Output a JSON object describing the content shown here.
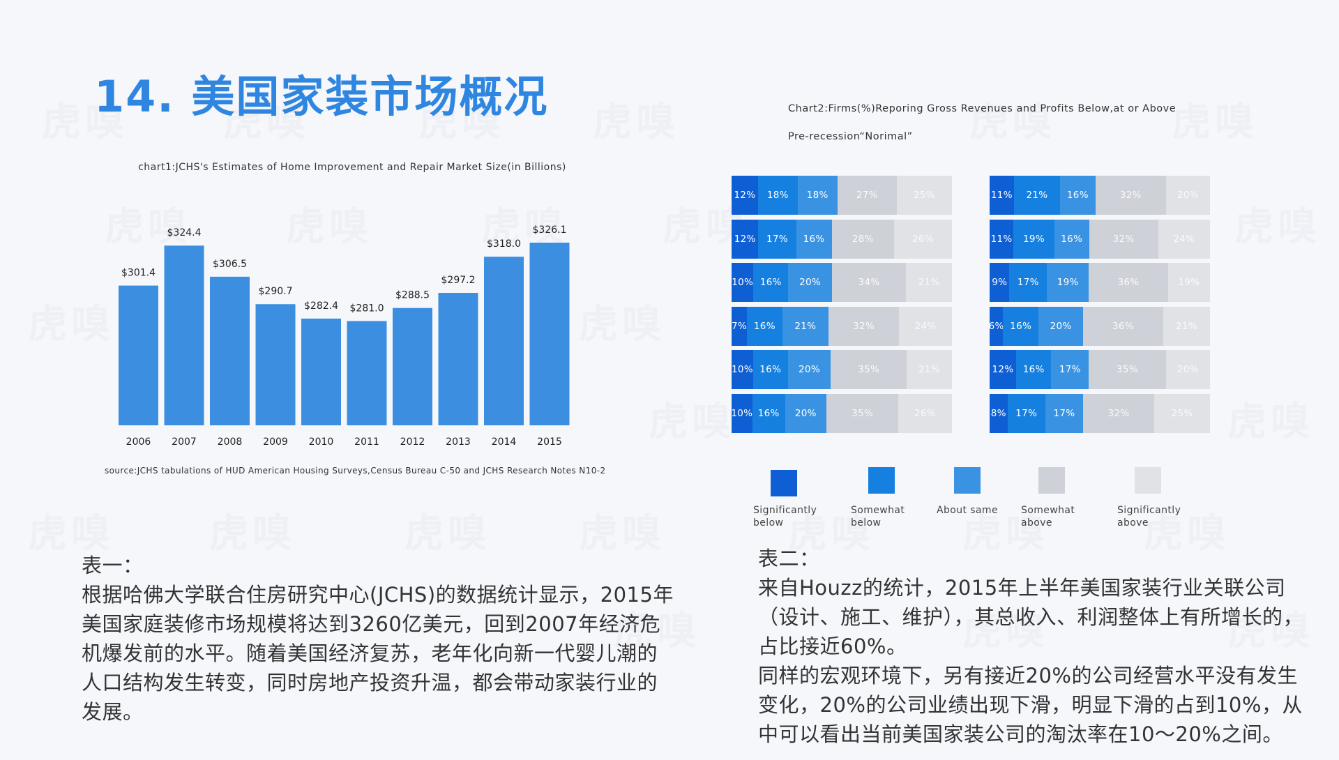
{
  "title": "14. 美国家装市场概况",
  "watermark": "虎嗅",
  "chart_data": [
    {
      "type": "bar",
      "title": "chart1:JCHS's Estimates of Home Improvement and Repair Market Size(in Billions)",
      "categories": [
        "2006",
        "2007",
        "2008",
        "2009",
        "2010",
        "2011",
        "2012",
        "2013",
        "2014",
        "2015"
      ],
      "values": [
        301.4,
        324.4,
        306.5,
        290.7,
        282.4,
        281.0,
        288.5,
        297.2,
        318.0,
        326.1
      ],
      "labels": [
        "$301.4",
        "$324.4",
        "$306.5",
        "$290.7",
        "$282.4",
        "$281.0",
        "$288.5",
        "$297.2",
        "$318.0",
        "$326.1"
      ],
      "color": "#3c8fe0",
      "source": "source:JCHS tabulations of HUD American Housing Surveys,Census Bureau C-50 and JCHS Research Notes N10-2"
    },
    {
      "type": "bar",
      "stacked": "horizontal-100%",
      "title_line1": "Chart2:Firms(%)Reporing Gross Revenues and Profits Below,at or Above",
      "title_line2": "Pre-recession“Norimal”",
      "series": [
        {
          "name": "Significantly below",
          "color": "#0f5fd4"
        },
        {
          "name": "Somewhat below",
          "color": "#1580e0"
        },
        {
          "name": "About same",
          "color": "#3a93e2"
        },
        {
          "name": "Somewhat above",
          "color": "#cfd1d8"
        },
        {
          "name": "Significantly above",
          "color": "#e1e2e6"
        }
      ],
      "legend_labels": [
        "Significantly\nbelow",
        "Somewhat\nbelow",
        "About same",
        "Somewhat\nabove",
        "Significantly\nabove"
      ],
      "panels": [
        {
          "rows": [
            [
              12,
              18,
              18,
              27,
              25
            ],
            [
              12,
              17,
              16,
              28,
              26
            ],
            [
              10,
              16,
              20,
              34,
              21
            ],
            [
              7,
              16,
              21,
              32,
              24
            ],
            [
              10,
              16,
              20,
              35,
              21
            ],
            [
              10,
              16,
              20,
              35,
              26
            ]
          ]
        },
        {
          "rows": [
            [
              11,
              21,
              16,
              32,
              20
            ],
            [
              11,
              19,
              16,
              32,
              24
            ],
            [
              9,
              17,
              19,
              36,
              19
            ],
            [
              6,
              16,
              20,
              36,
              21
            ],
            [
              12,
              16,
              17,
              35,
              20
            ],
            [
              8,
              17,
              17,
              32,
              25
            ]
          ]
        }
      ]
    }
  ],
  "notes": {
    "left": {
      "heading": "表一：",
      "body": "根据哈佛大学联合住房研究中心(JCHS)的数据统计显示，2015年美国家庭装修市场规模将达到3260亿美元，回到2007年经济危机爆发前的水平。随着美国经济复苏，老年化向新一代婴儿潮的人口结构发生转变，同时房地产投资升温，都会带动家装行业的发展。"
    },
    "right": {
      "heading": "表二：",
      "body1": "来自Houzz的统计，2015年上半年美国家装行业关联公司（设计、施工、维护），其总收入、利润整体上有所增长的，占比接近60%。",
      "body2": "同样的宏观环境下，另有接近20%的公司经营水平没有发生变化，20%的公司业绩出现下滑，明显下滑的占到10%，从中可以看出当前美国家装公司的淘汰率在10～20%之间。"
    }
  }
}
